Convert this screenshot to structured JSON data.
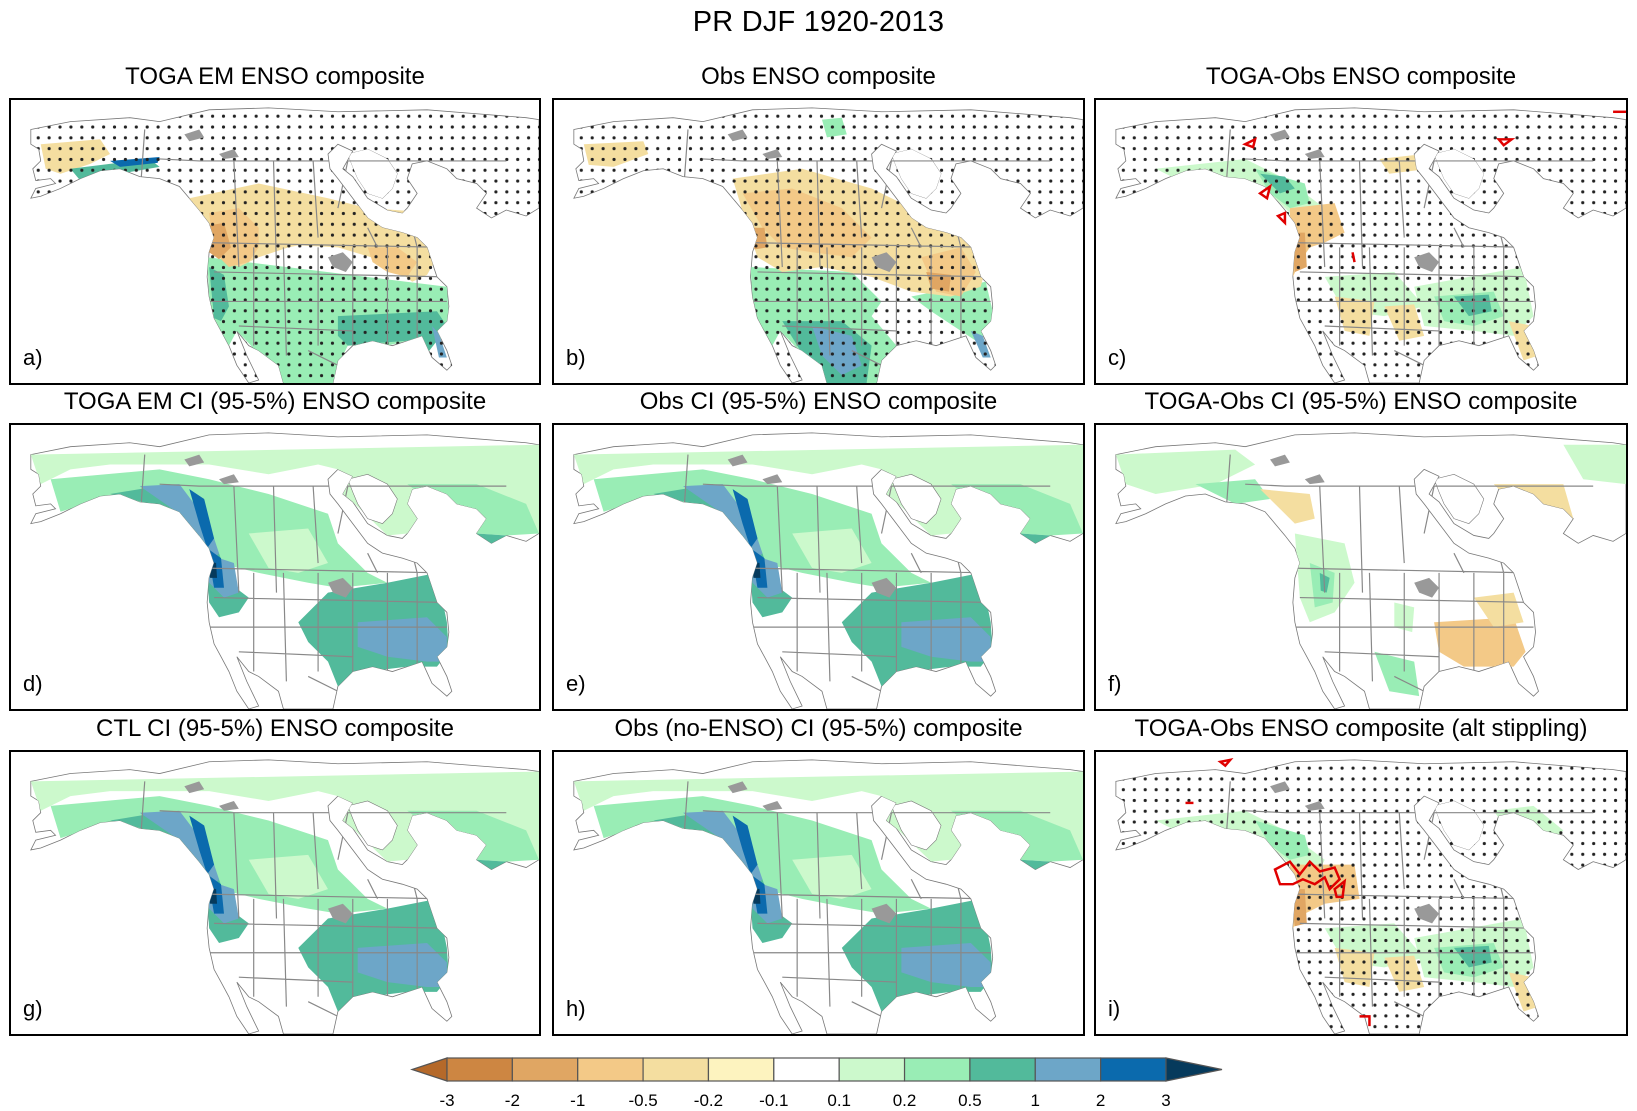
{
  "figure": {
    "title": "PR DJF 1920-2013"
  },
  "chart_data": {
    "type": "heatmap",
    "title": "PR DJF 1920-2013",
    "description": "Nine North America map panels of DJF precipitation ENSO composites (filled contours) with stippling for significance",
    "panels": [
      {
        "id": "a",
        "label": "a)",
        "title": "TOGA EM ENSO composite",
        "stippling": true,
        "red_contours": false,
        "pattern": "toga_em"
      },
      {
        "id": "b",
        "label": "b)",
        "title": "Obs ENSO composite",
        "stippling": true,
        "red_contours": false,
        "pattern": "obs"
      },
      {
        "id": "c",
        "label": "c)",
        "title": "TOGA-Obs ENSO composite",
        "stippling": true,
        "red_contours": true,
        "pattern": "diff"
      },
      {
        "id": "d",
        "label": "d)",
        "title": "TOGA EM CI (95-5%) ENSO composite",
        "stippling": false,
        "red_contours": false,
        "pattern": "ci"
      },
      {
        "id": "e",
        "label": "e)",
        "title": "Obs CI (95-5%) ENSO composite",
        "stippling": false,
        "red_contours": false,
        "pattern": "ci"
      },
      {
        "id": "f",
        "label": "f)",
        "title": "TOGA-Obs CI (95-5%) ENSO composite",
        "stippling": false,
        "red_contours": false,
        "pattern": "ci_diff"
      },
      {
        "id": "g",
        "label": "g)",
        "title": "CTL CI (95-5%) ENSO composite",
        "stippling": false,
        "red_contours": false,
        "pattern": "ci"
      },
      {
        "id": "h",
        "label": "h)",
        "title": "Obs (no-ENSO) CI (95-5%) composite",
        "stippling": false,
        "red_contours": false,
        "pattern": "ci"
      },
      {
        "id": "i",
        "label": "i)",
        "title": "TOGA-Obs ENSO composite (alt stippling)",
        "stippling": true,
        "red_contours": true,
        "pattern": "diff_alt"
      }
    ],
    "colorbar": {
      "levels": [
        "-3",
        "-2",
        "-1",
        "-0.5",
        "-0.2",
        "-0.1",
        "0.1",
        "0.2",
        "0.5",
        "1",
        "2",
        "3"
      ],
      "colors": [
        "#b5692a",
        "#cd8642",
        "#e0a663",
        "#f3c987",
        "#f4dea0",
        "#fdf3bf",
        "#ffffff",
        "#ccf9cc",
        "#99edb5",
        "#52ba9b",
        "#6da6c8",
        "#0b6aad",
        "#063a5c"
      ],
      "extend": "both"
    },
    "colors": {
      "stipple": "#222222",
      "borders": "#888888",
      "coast": "#777777",
      "significance_contour": "#e00000"
    }
  }
}
